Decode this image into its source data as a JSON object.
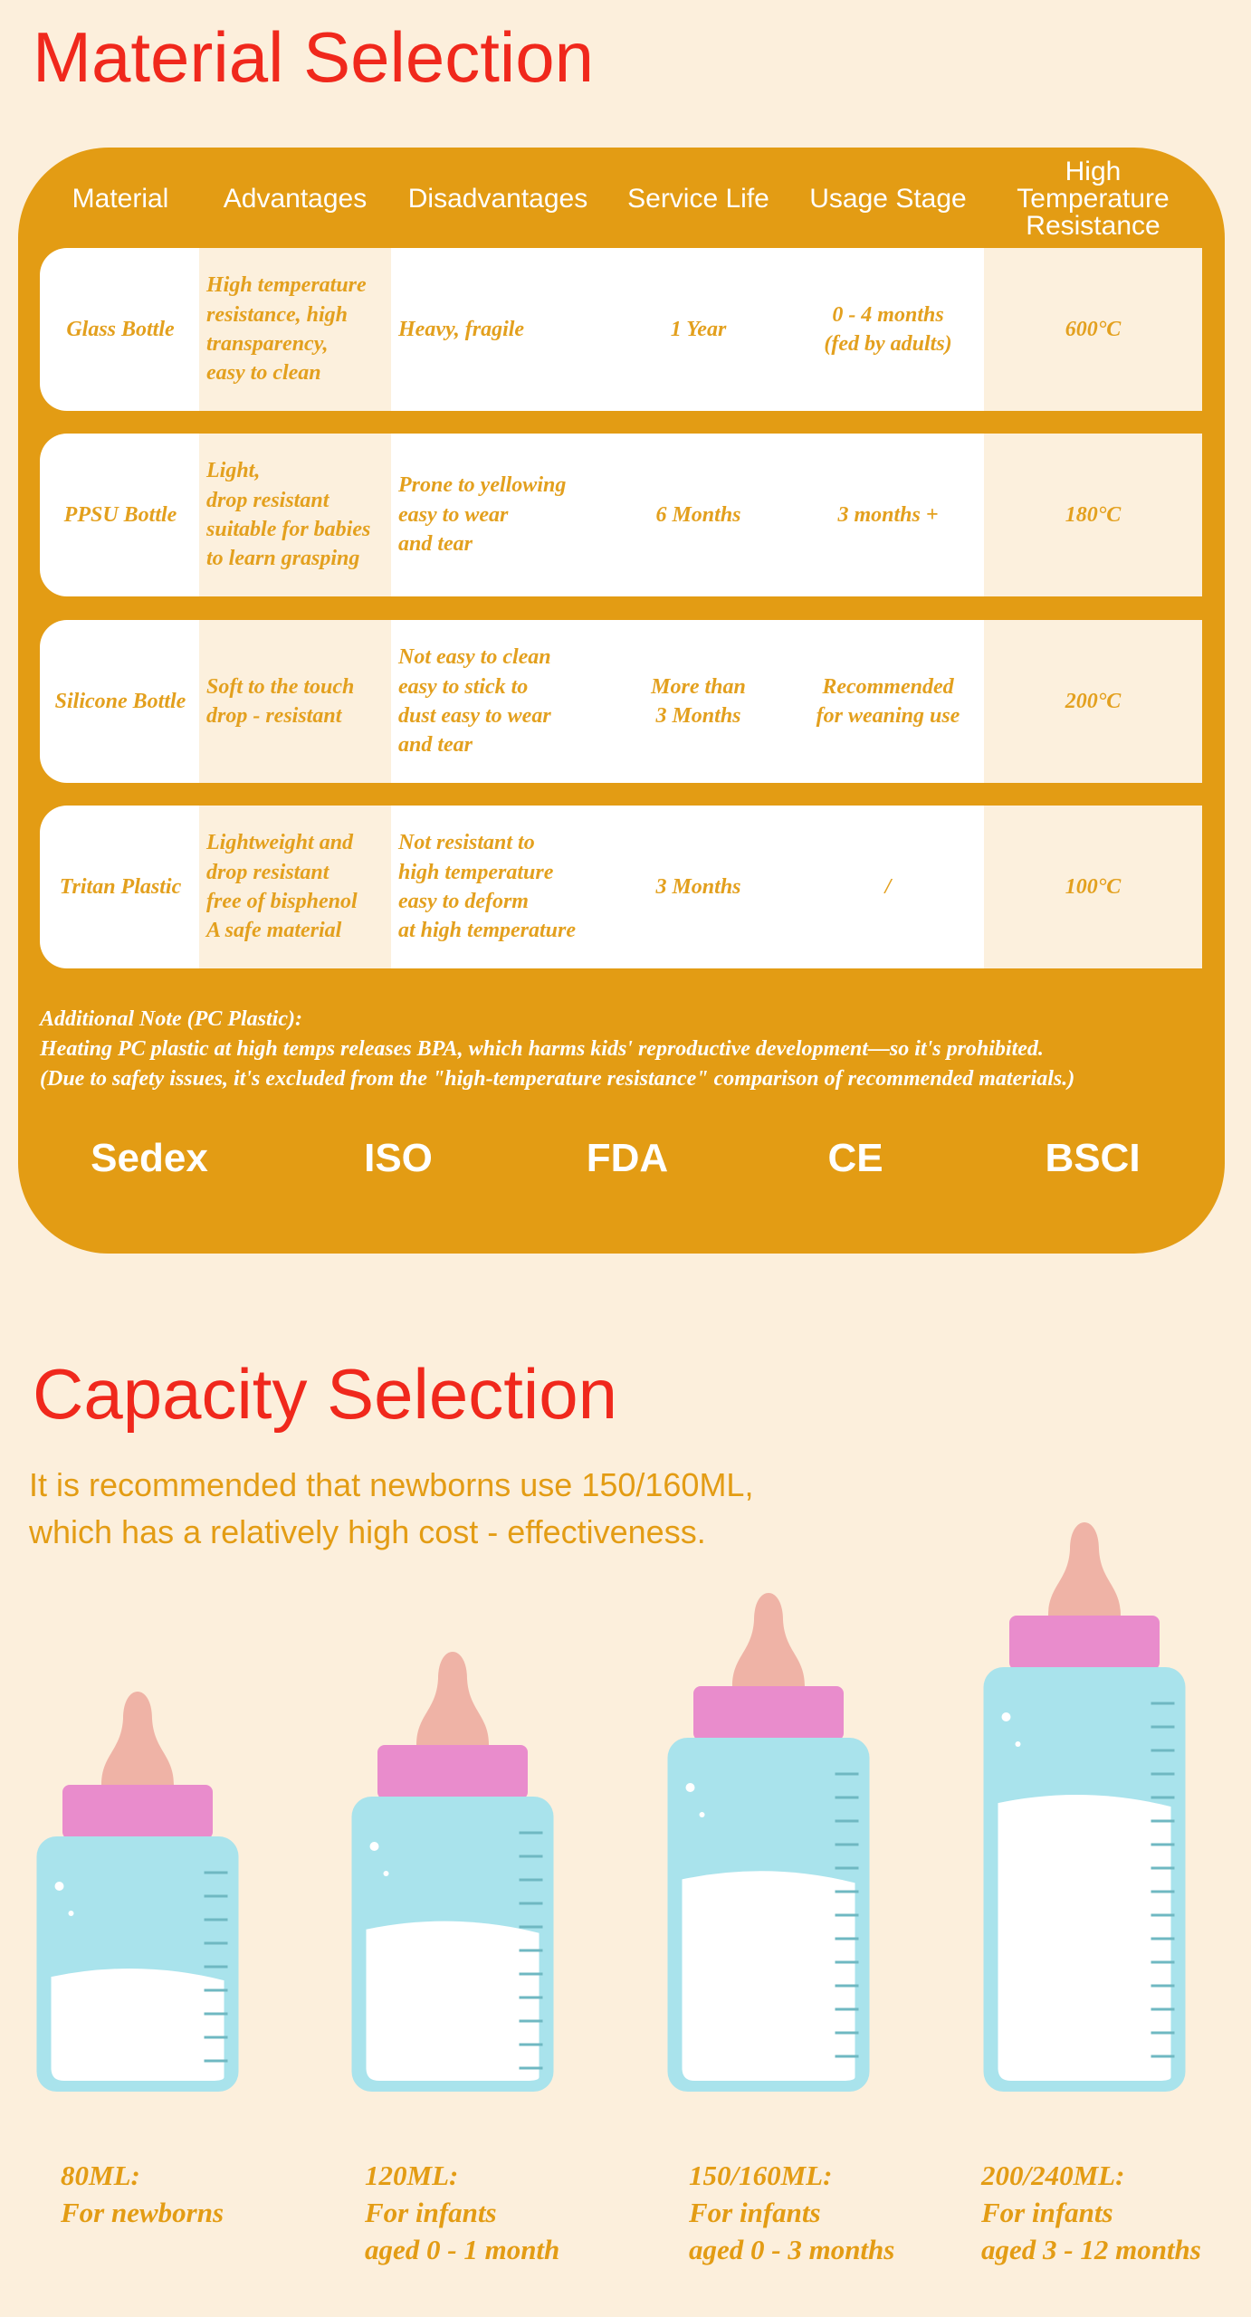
{
  "material": {
    "title": "Material Selection",
    "table": {
      "headers": [
        "Material",
        "Advantages",
        "Disadvantages",
        "Service Life",
        "Usage Stage",
        "High\nTemperature\nResistance"
      ],
      "rows": [
        [
          "Glass Bottle",
          "High temperature\nresistance, high\ntransparency,\neasy to clean",
          "Heavy, fragile",
          "1 Year",
          "0 - 4 months\n(fed by adults)",
          "600°C"
        ],
        [
          "PPSU Bottle",
          "Light,\ndrop resistant\nsuitable for babies\nto learn grasping",
          "Prone to yellowing\neasy to wear\nand tear",
          "6 Months",
          "3 months +",
          "180°C"
        ],
        [
          "Silicone Bottle",
          "Soft to the touch\ndrop - resistant",
          "Not easy to clean\neasy to stick to\ndust easy to wear\nand tear",
          "More than\n3 Months",
          "Recommended\nfor weaning use",
          "200°C"
        ],
        [
          "Tritan Plastic",
          "Lightweight and\ndrop resistant\nfree of bisphenol\nA safe material",
          "Not resistant to\nhigh temperature\neasy to deform\nat high temperature",
          "3 Months",
          "/",
          "100°C"
        ]
      ]
    },
    "note": {
      "title": "Additional Note (PC Plastic):",
      "lines": [
        "Heating PC plastic at high temps releases BPA, which harms kids' reproductive development—so it's prohibited.",
        "(Due to safety issues, it's excluded from the \"high-temperature resistance\" comparison of recommended materials.)"
      ]
    },
    "certifications": [
      "Sedex",
      "ISO",
      "FDA",
      "CE",
      "BSCI"
    ]
  },
  "capacity": {
    "title": "Capacity Selection",
    "subtitle": [
      "It is recommended that newborns use 150/160ML,",
      "which has a relatively high cost - effectiveness."
    ],
    "bottles": [
      {
        "size": "80ML:",
        "lines": [
          "For newborns"
        ]
      },
      {
        "size": "120ML:",
        "lines": [
          "For infants",
          "aged 0 - 1 month"
        ]
      },
      {
        "size": "150/160ML:",
        "lines": [
          "For infants",
          "aged 0 - 3 months"
        ]
      },
      {
        "size": "200/240ML:",
        "lines": [
          "For infants",
          "aged 3 - 12 months"
        ]
      }
    ]
  }
}
